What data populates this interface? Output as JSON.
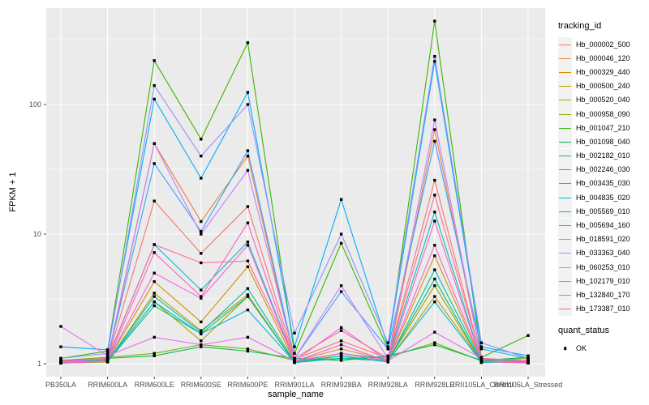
{
  "chart_data": {
    "type": "line",
    "xlabel": "sample_name",
    "ylabel": "FPKM + 1",
    "y_scale": "log10",
    "y_ticks": [
      1,
      10,
      100
    ],
    "y_minor_ticks": [
      3.162,
      31.62,
      316.2
    ],
    "ylim": [
      0.79,
      550
    ],
    "grid": true,
    "panel_bg": "#ebebeb",
    "gridline_color": "#ffffff",
    "axis_text_color": "#4d4d4d",
    "point_color": "#000000",
    "legend_position": "right",
    "legend_title": "tracking_id",
    "legend2_title": "quant_status",
    "legend2_items": [
      {
        "label": "OK"
      }
    ],
    "categories": [
      "PB350LA",
      "RRIM600LA",
      "RRIM600LE",
      "RRIM600SE",
      "RRIM600PE",
      "RRIM901LA",
      "RRIM928BA",
      "RRIM928LA",
      "RRIM928LE",
      "RRII105LA_Control",
      "RRII105LA_Stressed"
    ],
    "series": [
      {
        "name": "Hb_000002_500",
        "color": "#F8766D",
        "values": [
          1.05,
          1.08,
          18,
          7.1,
          16.3,
          1.08,
          1.5,
          1.1,
          26,
          1.08,
          1.05
        ]
      },
      {
        "name": "Hb_000046_120",
        "color": "#EA8331",
        "values": [
          1.02,
          1.05,
          50,
          12.5,
          40,
          1.05,
          1.3,
          1.06,
          64,
          1.1,
          1.02
        ]
      },
      {
        "name": "Hb_000329_440",
        "color": "#D89000",
        "values": [
          1.02,
          1.05,
          4.3,
          2.1,
          5.6,
          1.04,
          1.2,
          1.05,
          6.8,
          1.05,
          1.02
        ]
      },
      {
        "name": "Hb_000500_240",
        "color": "#C09B00",
        "values": [
          1.01,
          1.03,
          3.5,
          1.8,
          3.4,
          1.02,
          1.15,
          1.04,
          3.3,
          1.04,
          1.02
        ]
      },
      {
        "name": "Hb_000520_040",
        "color": "#A3A500",
        "values": [
          1.02,
          1.06,
          3.0,
          1.5,
          3.3,
          1.03,
          1.1,
          1.05,
          4.0,
          1.03,
          1.06
        ]
      },
      {
        "name": "Hb_000958_090",
        "color": "#7CAE00",
        "values": [
          1.06,
          1.12,
          1.2,
          1.4,
          1.3,
          1.06,
          1.1,
          1.12,
          1.45,
          1.05,
          1.1
        ]
      },
      {
        "name": "Hb_001047_210",
        "color": "#39B600",
        "values": [
          1.1,
          1.25,
          218,
          54,
          300,
          1.2,
          8.5,
          1.3,
          440,
          1.12,
          1.65
        ]
      },
      {
        "name": "Hb_001098_040",
        "color": "#00BB4E",
        "values": [
          1.05,
          1.1,
          1.15,
          1.35,
          1.25,
          1.1,
          1.06,
          1.15,
          1.4,
          1.06,
          1.12
        ]
      },
      {
        "name": "Hb_002182_010",
        "color": "#00BF7D",
        "values": [
          1.01,
          1.04,
          2.8,
          1.7,
          3.3,
          1.02,
          1.1,
          1.05,
          4.5,
          1.02,
          1.04
        ]
      },
      {
        "name": "Hb_002246_030",
        "color": "#00C1A3",
        "values": [
          1.01,
          1.05,
          3.3,
          1.75,
          3.8,
          1.04,
          1.15,
          1.03,
          5.3,
          1.04,
          1.02
        ]
      },
      {
        "name": "Hb_003435_030",
        "color": "#00BFC4",
        "values": [
          1.02,
          1.08,
          8.3,
          3.7,
          8.7,
          1.05,
          1.2,
          1.08,
          14.8,
          1.05,
          1.04
        ]
      },
      {
        "name": "Hb_004835_020",
        "color": "#00BBDA",
        "values": [
          1.01,
          1.05,
          3.0,
          1.7,
          2.6,
          1.03,
          1.1,
          1.05,
          3.0,
          1.03,
          1.02
        ]
      },
      {
        "name": "Hb_005569_010",
        "color": "#00B0F6",
        "values": [
          1.35,
          1.28,
          110,
          27,
          124,
          1.35,
          18.5,
          1.35,
          215,
          1.35,
          1.15
        ]
      },
      {
        "name": "Hb_005694_160",
        "color": "#35A2FF",
        "values": [
          1.03,
          1.1,
          35,
          10.5,
          44,
          1.1,
          3.6,
          1.3,
          52,
          1.3,
          1.1
        ]
      },
      {
        "name": "Hb_018591_020",
        "color": "#9590FF",
        "values": [
          1.1,
          1.2,
          140,
          40,
          100,
          1.72,
          10,
          1.45,
          235,
          1.45,
          1.1
        ]
      },
      {
        "name": "Hb_033363_040",
        "color": "#C77CFF",
        "values": [
          1.02,
          1.1,
          50,
          10,
          31,
          1.1,
          4.0,
          1.1,
          76,
          1.1,
          1.05
        ]
      },
      {
        "name": "Hb_060253_010",
        "color": "#E76BF3",
        "values": [
          1.94,
          1.15,
          1.6,
          1.4,
          1.6,
          1.05,
          1.9,
          1.05,
          1.75,
          1.1,
          1.05
        ]
      },
      {
        "name": "Hb_102179_010",
        "color": "#FA62DB",
        "values": [
          1.01,
          1.05,
          5.0,
          3.2,
          8.2,
          1.04,
          1.2,
          1.05,
          8.2,
          1.05,
          1.02
        ]
      },
      {
        "name": "Hb_132840_170",
        "color": "#FF62BC",
        "values": [
          1.01,
          1.04,
          7.2,
          3.3,
          12.2,
          1.04,
          1.4,
          1.04,
          12.6,
          1.04,
          1.01
        ]
      },
      {
        "name": "Hb_173387_010",
        "color": "#FF6A98",
        "values": [
          1.05,
          1.1,
          8.3,
          6.0,
          6.2,
          1.1,
          1.8,
          1.1,
          20,
          1.1,
          1.05
        ]
      }
    ]
  }
}
